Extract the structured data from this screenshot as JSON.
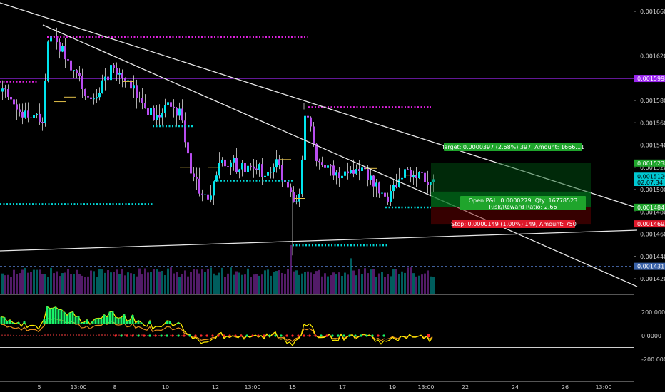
{
  "chart_data": {
    "type": "candlestick",
    "price_axis": {
      "min": 0.00141,
      "max": 0.00167,
      "ticks": [
        "0.0016600",
        "0.0016200",
        "0.0015800",
        "0.0015600",
        "0.0015400",
        "0.0015200",
        "0.0015000",
        "0.0014800",
        "0.0014600",
        "0.0014400",
        "0.0014200"
      ],
      "tick_values": [
        0.00166,
        0.00162,
        0.00158,
        0.00156,
        0.00154,
        0.00152,
        0.0015,
        0.00148,
        0.00146,
        0.00144,
        0.00142
      ]
    },
    "price_tags": [
      {
        "label": "0.0015998",
        "value": 0.0015998,
        "color": "#9c27f0",
        "text": "#ffffff"
      },
      {
        "label": "0.0015238",
        "value": 0.0015238,
        "color": "#1fa52c",
        "text": "#ffffff"
      },
      {
        "label": "0.0015120",
        "value": 0.001512,
        "color": "#00c8d2",
        "text": "#000000"
      },
      {
        "label": "02:07:34",
        "value": 0.0015064,
        "color": "#00c8d2",
        "text": "#000000"
      },
      {
        "label": "0.0014841",
        "value": 0.0014841,
        "color": "#1fa52c",
        "text": "#ffffff"
      },
      {
        "label": "0.0014692",
        "value": 0.0014692,
        "color": "#e0192b",
        "text": "#ffffff"
      },
      {
        "label": "0.0014311",
        "value": 0.0014311,
        "color": "#3a62a8",
        "text": "#ffffff"
      }
    ],
    "osc_axis": {
      "min": -330,
      "max": 330,
      "ticks": [
        "200.0000",
        "0.0000",
        "-200.0000"
      ],
      "tick_values": [
        200,
        0,
        -200
      ],
      "levels": [
        100,
        -100
      ]
    },
    "x_labels": [
      "5",
      "13:00",
      "8",
      "10",
      "12",
      "13:00",
      "15",
      "17",
      "19",
      "13:00",
      "22",
      "24",
      "26",
      "13:00"
    ],
    "position": {
      "target_label": "Target: 0.0000397 (2.68%) 397, Amount: 1666.11",
      "pnl_label": "Open P&L: 0.0000279, Qty: 16778523",
      "rr_label": "Risk/Reward Ratio: 2.66",
      "stop_label": "Stop: 0.0000149 (1.00%) 149, Amount: 750",
      "entry": 0.0014841,
      "target": 0.0015238,
      "stop": 0.0014692
    },
    "colors": {
      "bull": "#00e5ee",
      "bear": "#b84cf0",
      "pivot_magenta": "#e020e0",
      "pivot_cyan": "#00d8d8",
      "trend": "#e8e8e8",
      "osc_yellow": "#ffee00",
      "osc_orange": "#e8901c",
      "osc_green": "#19f56a",
      "osc_purple": "#a000f0"
    }
  }
}
